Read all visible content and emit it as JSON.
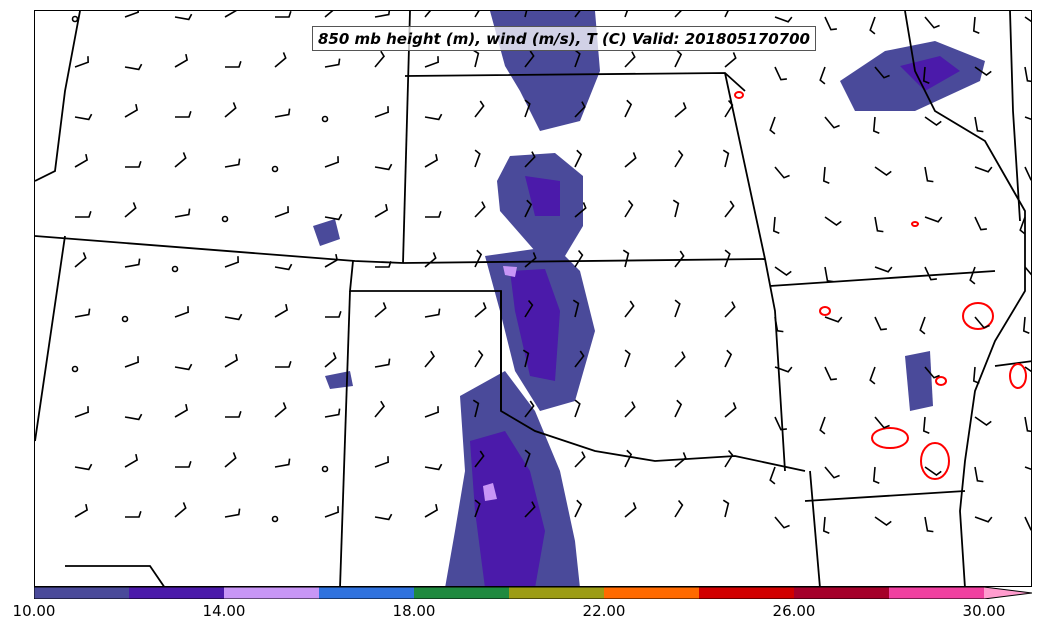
{
  "title": "850 mb height (m), wind (m/s), T (C) Valid: 201805170700",
  "colorbar": {
    "min": 10.0,
    "max": 30.0,
    "step": 2.0,
    "extend": "max",
    "tick_labels": [
      "10.00",
      "14.00",
      "18.00",
      "22.00",
      "26.00",
      "30.00"
    ],
    "tick_values": [
      10,
      14,
      18,
      22,
      26,
      30
    ],
    "colors": [
      "#4a4a9a",
      "#4b1aaa",
      "#c896f6",
      "#2f72de",
      "#1f8a3f",
      "#9c9c14",
      "#ff6a00",
      "#d10000",
      "#a5002a",
      "#f040a0",
      "#ff9cce"
    ]
  },
  "contour_color": "#ff0000",
  "boundary_color": "#000000",
  "wind_barb_color": "#000000"
}
